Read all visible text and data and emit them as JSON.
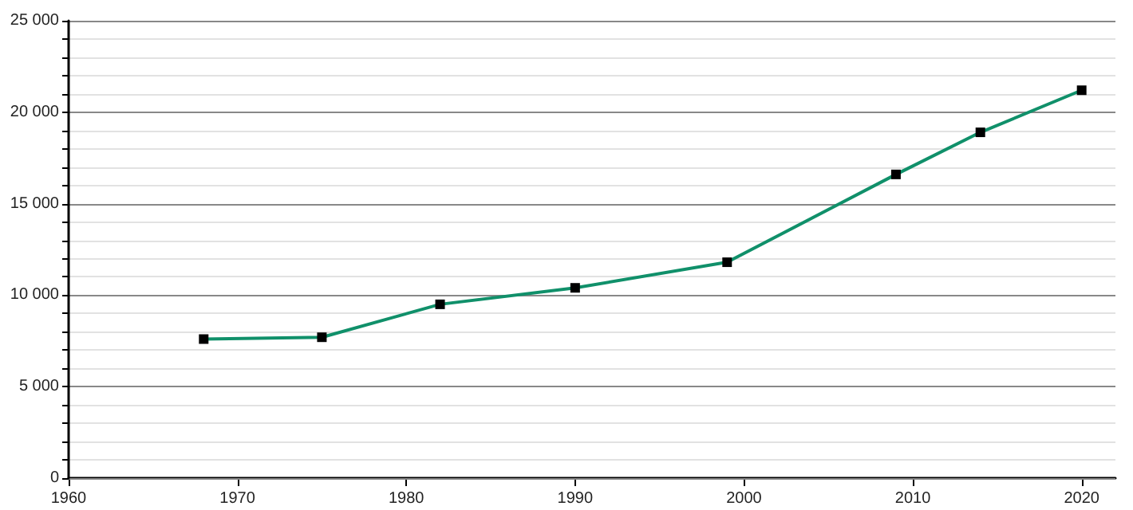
{
  "chart_data": {
    "type": "line",
    "x": [
      1968,
      1975,
      1982,
      1990,
      1999,
      2009,
      2014,
      2020
    ],
    "series": [
      {
        "color": "#10906a",
        "values": [
          7600,
          7700,
          9500,
          10400,
          11800,
          16600,
          18900,
          21200
        ]
      }
    ],
    "xlim": [
      1960,
      2022
    ],
    "xticks": [
      1960,
      1970,
      1980,
      1990,
      2000,
      2010,
      2020
    ],
    "ylim": [
      0,
      25000
    ],
    "yticks": [
      {
        "value": 0,
        "label": "0"
      },
      {
        "value": 1000,
        "label": null
      },
      {
        "value": 2000,
        "label": null
      },
      {
        "value": 3000,
        "label": null
      },
      {
        "value": 4000,
        "label": null
      },
      {
        "value": 5000,
        "label": "5 000"
      },
      {
        "value": 6000,
        "label": null
      },
      {
        "value": 7000,
        "label": null
      },
      {
        "value": 8000,
        "label": null
      },
      {
        "value": 9000,
        "label": null
      },
      {
        "value": 10000,
        "label": "10 000"
      },
      {
        "value": 11000,
        "label": null
      },
      {
        "value": 12000,
        "label": null
      },
      {
        "value": 13000,
        "label": null
      },
      {
        "value": 14000,
        "label": null
      },
      {
        "value": 15000,
        "label": "15 000"
      },
      {
        "value": 16000,
        "label": null
      },
      {
        "value": 17000,
        "label": null
      },
      {
        "value": 18000,
        "label": null
      },
      {
        "value": 19000,
        "label": null
      },
      {
        "value": 20000,
        "label": "20 000"
      },
      {
        "value": 21000,
        "label": null
      },
      {
        "value": 22000,
        "label": null
      },
      {
        "value": 23000,
        "label": null
      },
      {
        "value": 24000,
        "label": null
      },
      {
        "value": 25000,
        "label": "25 000"
      }
    ],
    "grid": "y",
    "marker": "square",
    "line_style": "solid"
  }
}
